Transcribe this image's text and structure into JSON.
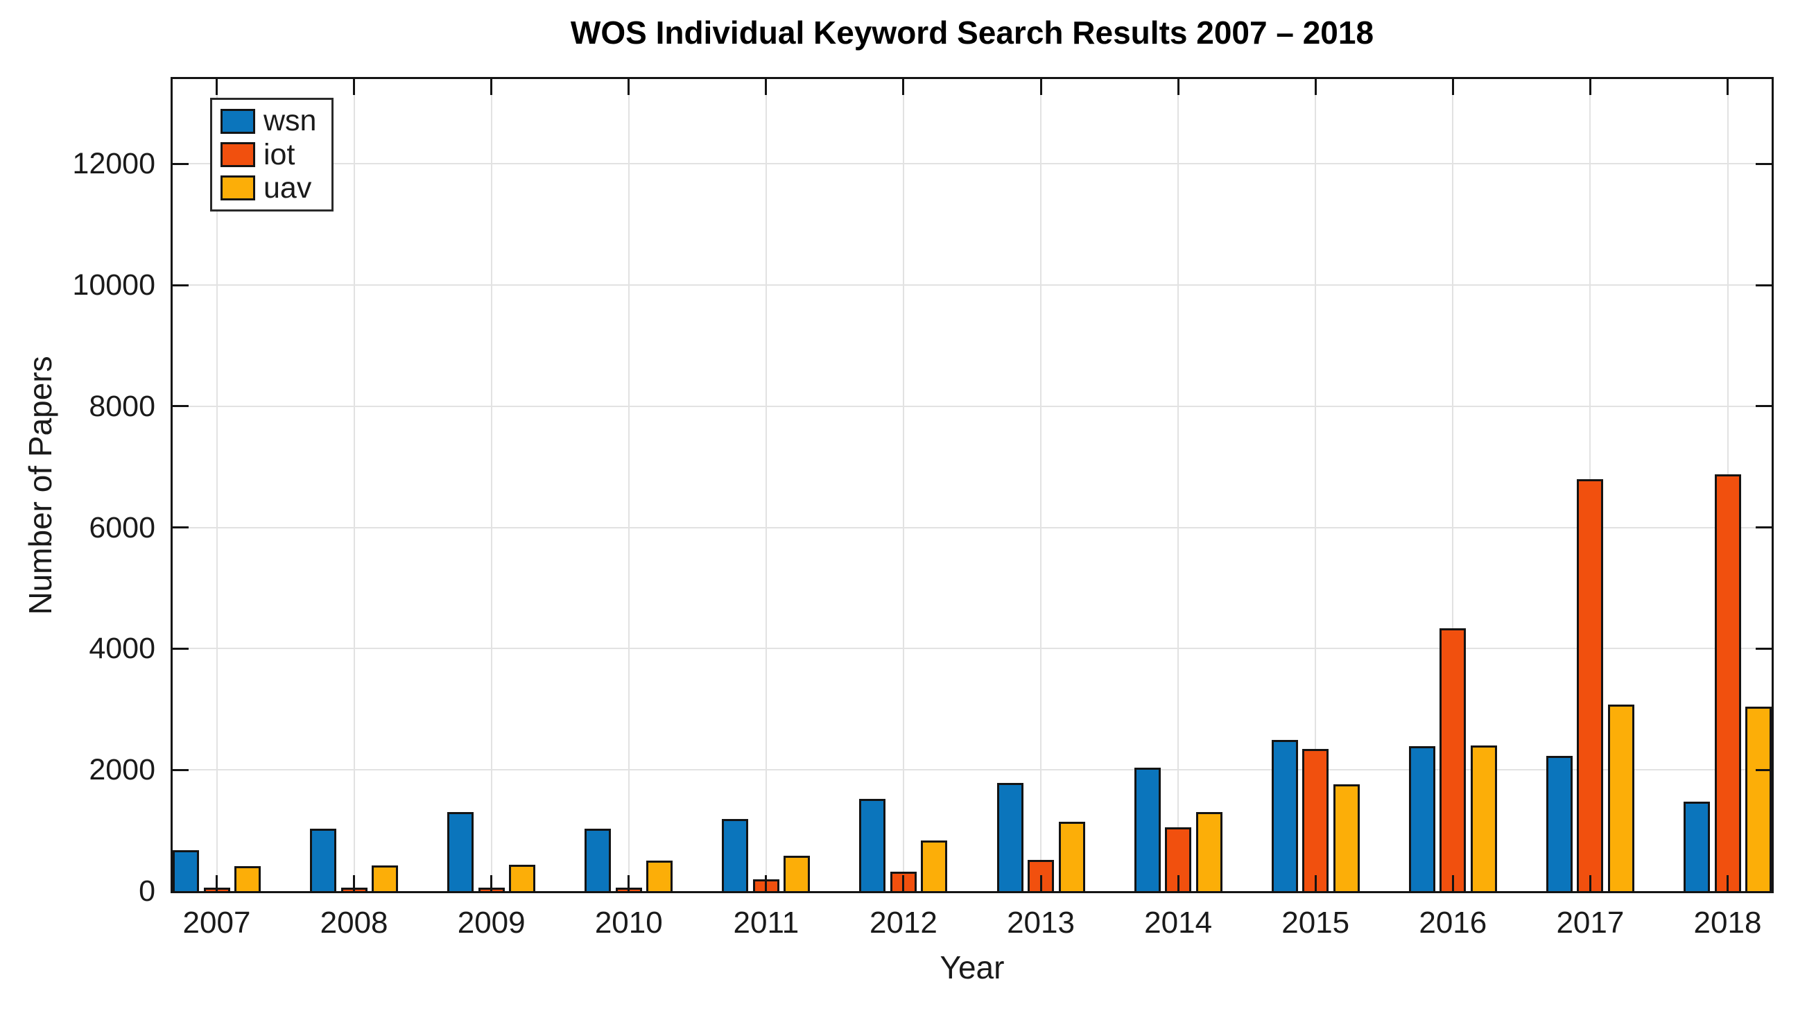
{
  "figure": {
    "title": "WOS Individual Keyword Search Results 2007 – 2018",
    "xlabel": "Year",
    "ylabel": "Number of Papers"
  },
  "legend": {
    "position": "top-left",
    "entries": [
      {
        "label": "wsn",
        "color": "#0b75bc"
      },
      {
        "label": "iot",
        "color": "#f1500e"
      },
      {
        "label": "uav",
        "color": "#fcae08"
      }
    ]
  },
  "colors": {
    "axis": "#141414",
    "grid": "#e2e2e2",
    "background": "#ffffff",
    "wsn": "#0b75bc",
    "iot": "#f1500e",
    "uav": "#fcae08"
  },
  "chart_data": {
    "type": "bar",
    "title": "WOS Individual Keyword Search Results 2007 – 2018",
    "xlabel": "Year",
    "ylabel": "Number of Papers",
    "categories": [
      "2007",
      "2008",
      "2009",
      "2010",
      "2011",
      "2012",
      "2013",
      "2014",
      "2015",
      "2016",
      "2017",
      "2018"
    ],
    "series": [
      {
        "name": "wsn",
        "color": "#0b75bc",
        "values": [
          670,
          1030,
          1310,
          1030,
          1190,
          1520,
          1780,
          2040,
          2500,
          2390,
          2230,
          1480
        ]
      },
      {
        "name": "iot",
        "color": "#f1500e",
        "values": [
          20,
          40,
          30,
          60,
          190,
          320,
          510,
          1050,
          2350,
          4340,
          6800,
          6880
        ]
      },
      {
        "name": "uav",
        "color": "#fcae08",
        "values": [
          410,
          420,
          430,
          500,
          580,
          830,
          1150,
          1300,
          1760,
          2400,
          3080,
          3040
        ]
      }
    ],
    "ylim": [
      0,
      13400
    ],
    "yticks": [
      0,
      2000,
      4000,
      6000,
      8000,
      10000,
      12000
    ],
    "grid": true,
    "legend_position": "top-left"
  }
}
